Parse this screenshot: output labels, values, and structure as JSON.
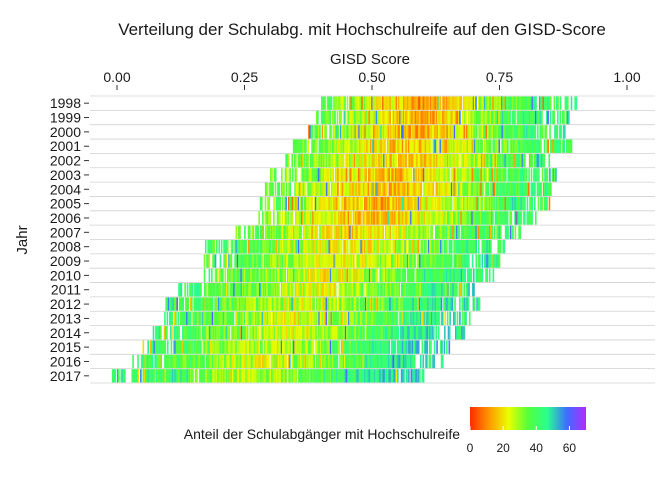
{
  "chart_data": {
    "type": "heatmap",
    "title": "Verteilung der Schulabg. mit Hochschulreife auf den GISD-Score",
    "xlabel": "GISD Score",
    "ylabel": "Jahr",
    "x_axis_position": "top",
    "xlim": [
      -0.05,
      1.02
    ],
    "x_ticks": [
      0.0,
      0.25,
      0.5,
      0.75,
      1.0
    ],
    "x_tick_labels": [
      "0.00",
      "0.25",
      "0.50",
      "0.75",
      "1.00"
    ],
    "years": [
      "1998",
      "1999",
      "2000",
      "2001",
      "2002",
      "2003",
      "2004",
      "2005",
      "2006",
      "2007",
      "2008",
      "2009",
      "2010",
      "2011",
      "2012",
      "2013",
      "2014",
      "2015",
      "2016",
      "2017"
    ],
    "rows": [
      {
        "year": "1998",
        "range": [
          0.4,
          0.9
        ],
        "peak": 0.6,
        "peak_value": 12,
        "edge_value": 38
      },
      {
        "year": "1999",
        "range": [
          0.39,
          0.89
        ],
        "peak": 0.59,
        "peak_value": 14,
        "edge_value": 38
      },
      {
        "year": "2000",
        "range": [
          0.37,
          0.88
        ],
        "peak": 0.58,
        "peak_value": 14,
        "edge_value": 38
      },
      {
        "year": "2001",
        "range": [
          0.34,
          0.89
        ],
        "peak": 0.57,
        "peak_value": 16,
        "edge_value": 36
      },
      {
        "year": "2002",
        "range": [
          0.33,
          0.86
        ],
        "peak": 0.56,
        "peak_value": 16,
        "edge_value": 36
      },
      {
        "year": "2003",
        "range": [
          0.3,
          0.86
        ],
        "peak": 0.54,
        "peak_value": 15,
        "edge_value": 36
      },
      {
        "year": "2004",
        "range": [
          0.29,
          0.85
        ],
        "peak": 0.53,
        "peak_value": 14,
        "edge_value": 36
      },
      {
        "year": "2005",
        "range": [
          0.28,
          0.85
        ],
        "peak": 0.52,
        "peak_value": 14,
        "edge_value": 36
      },
      {
        "year": "2006",
        "range": [
          0.27,
          0.82
        ],
        "peak": 0.5,
        "peak_value": 14,
        "edge_value": 36
      },
      {
        "year": "2007",
        "range": [
          0.23,
          0.79
        ],
        "peak": 0.48,
        "peak_value": 18,
        "edge_value": 36
      },
      {
        "year": "2008",
        "range": [
          0.17,
          0.76
        ],
        "peak": 0.46,
        "peak_value": 20,
        "edge_value": 40
      },
      {
        "year": "2009",
        "range": [
          0.17,
          0.75
        ],
        "peak": 0.44,
        "peak_value": 22,
        "edge_value": 40
      },
      {
        "year": "2010",
        "range": [
          0.17,
          0.74
        ],
        "peak": 0.42,
        "peak_value": 22,
        "edge_value": 40
      },
      {
        "year": "2011",
        "range": [
          0.12,
          0.7
        ],
        "peak": 0.4,
        "peak_value": 24,
        "edge_value": 42
      },
      {
        "year": "2012",
        "range": [
          0.09,
          0.71
        ],
        "peak": 0.37,
        "peak_value": 24,
        "edge_value": 42
      },
      {
        "year": "2013",
        "range": [
          0.09,
          0.69
        ],
        "peak": 0.35,
        "peak_value": 24,
        "edge_value": 42
      },
      {
        "year": "2014",
        "range": [
          0.07,
          0.68
        ],
        "peak": 0.33,
        "peak_value": 24,
        "edge_value": 44
      },
      {
        "year": "2015",
        "range": [
          0.05,
          0.65
        ],
        "peak": 0.31,
        "peak_value": 24,
        "edge_value": 44
      },
      {
        "year": "2016",
        "range": [
          0.03,
          0.64
        ],
        "peak": 0.29,
        "peak_value": 24,
        "edge_value": 44
      },
      {
        "year": "2017",
        "range": [
          -0.01,
          0.6
        ],
        "peak": 0.26,
        "peak_value": 26,
        "edge_value": 46
      }
    ],
    "legend": {
      "title": "Anteil der Schulabgänger mit Hochschulreife",
      "position": "bottom",
      "range": [
        0,
        70
      ],
      "ticks": [
        0,
        20,
        40,
        60
      ],
      "tick_labels": [
        "0",
        "20",
        "40",
        "60"
      ],
      "colors": [
        "#ff2a00",
        "#ff9900",
        "#eaff00",
        "#55ff3a",
        "#2aff90",
        "#3b6fff",
        "#b22aff"
      ]
    },
    "grid": "horizontal"
  }
}
